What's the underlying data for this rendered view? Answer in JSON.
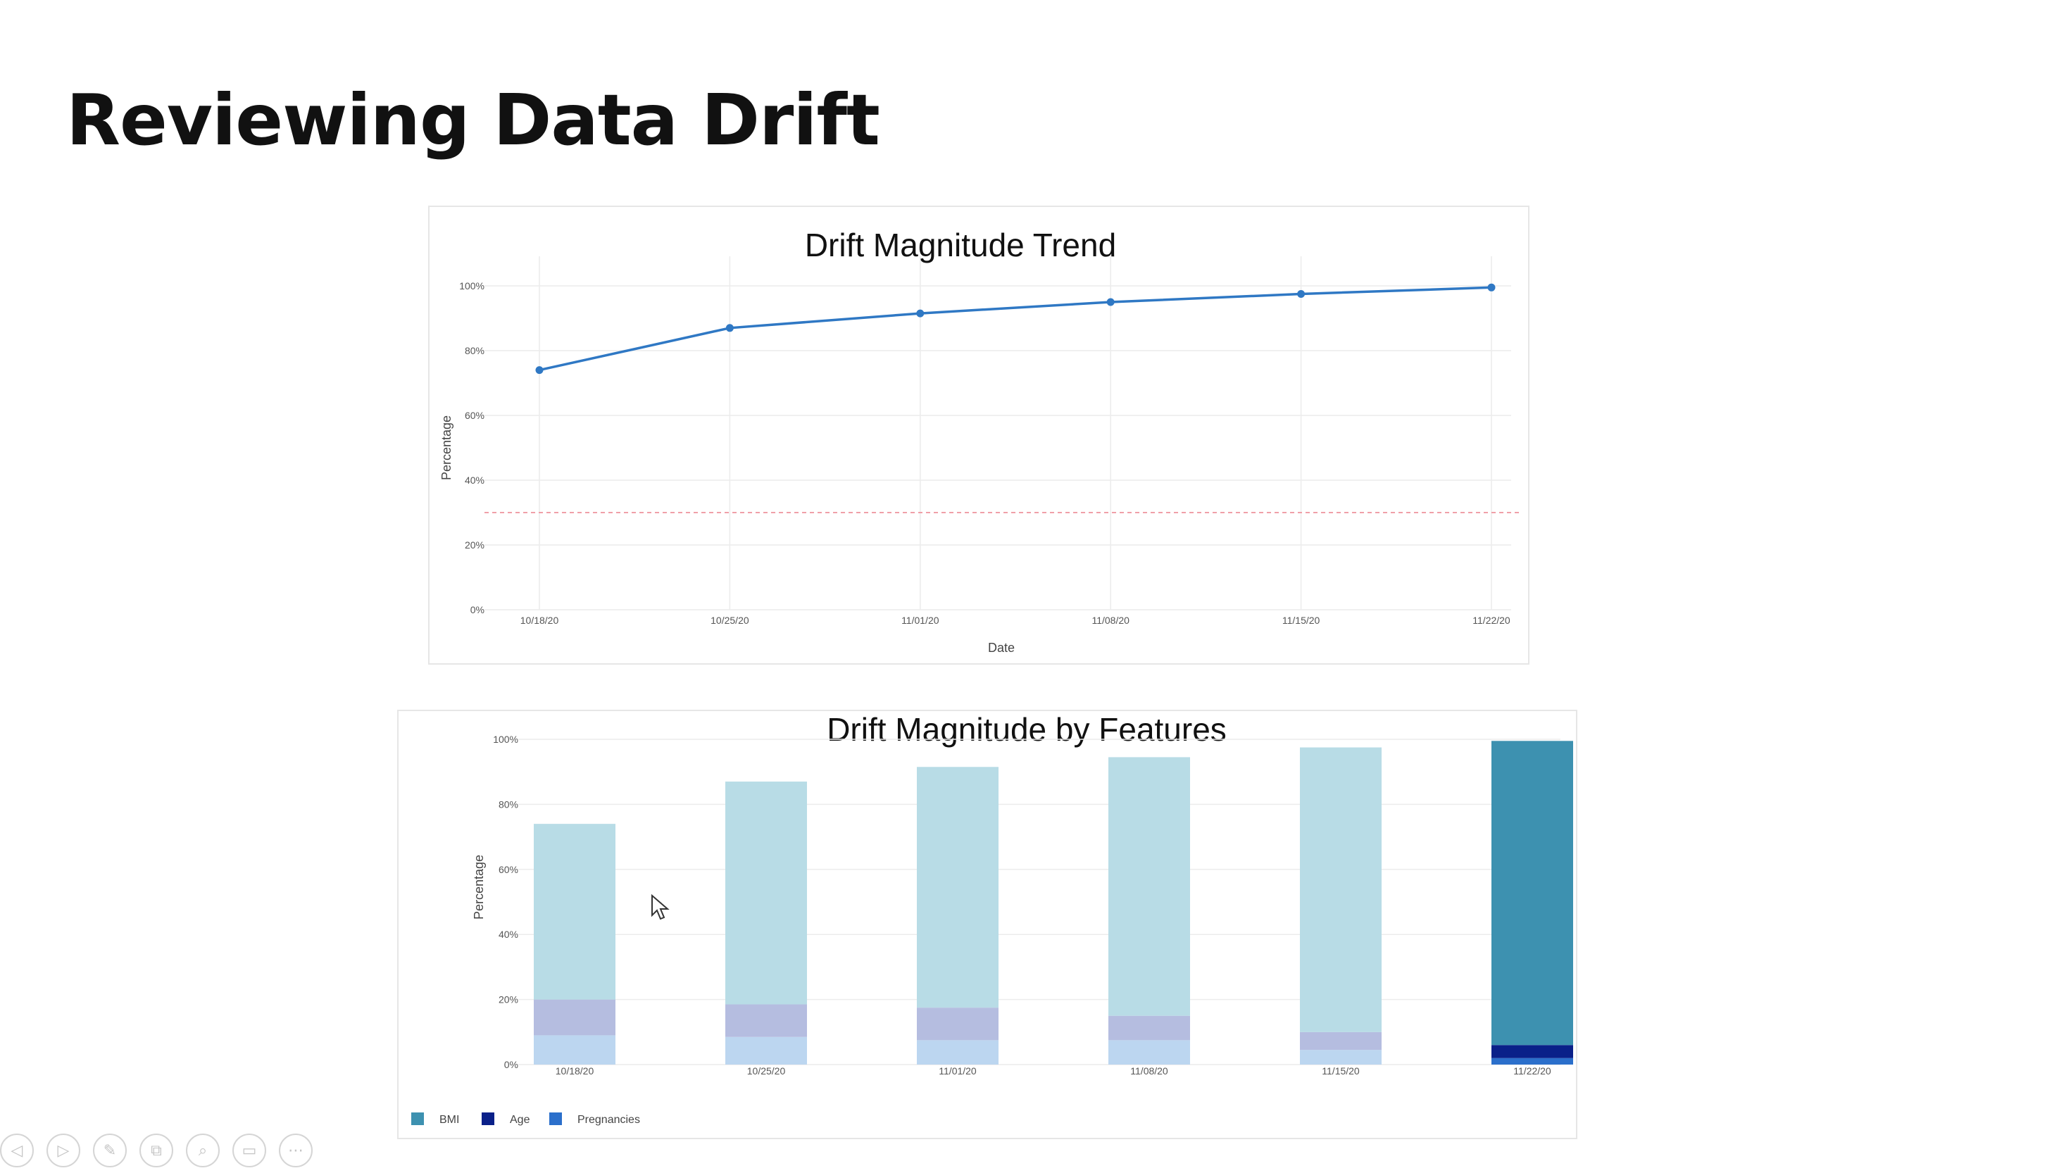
{
  "slide": {
    "title": "Reviewing Data Drift"
  },
  "charts": [
    {
      "type": "line",
      "title": "Drift Magnitude Trend",
      "xlabel": "Date",
      "ylabel": "Percentage",
      "categories": [
        "10/18/20",
        "10/25/20",
        "11/01/20",
        "11/08/20",
        "11/15/20",
        "11/22/20"
      ],
      "series": [
        {
          "values": [
            74,
            87,
            91.5,
            95,
            97.5,
            99.5
          ],
          "color": "#2f78c4"
        }
      ],
      "threshold": {
        "value": 30,
        "color": "#f0a0a8",
        "style": "dashed"
      },
      "yticks": [
        "0%",
        "20%",
        "40%",
        "60%",
        "80%",
        "100%"
      ],
      "ylim": [
        0,
        100
      ],
      "grid": true
    },
    {
      "type": "bar",
      "stacked": true,
      "title": "Drift Magnitude by Features",
      "xlabel": "",
      "ylabel": "Percentage",
      "categories": [
        "10/18/20",
        "10/25/20",
        "11/01/20",
        "11/08/20",
        "11/15/20",
        "11/22/20"
      ],
      "series": [
        {
          "name": "Pregnancies",
          "color": "#2b6fcb",
          "values": [
            9,
            8.5,
            7.5,
            7.5,
            4.5,
            2
          ]
        },
        {
          "name": "Age",
          "color": "#0a2089",
          "values": [
            11,
            10,
            10,
            7.5,
            5.5,
            4
          ]
        },
        {
          "name": "BMI",
          "color": "#3d91b0",
          "values": [
            54,
            68.5,
            74,
            79.5,
            87.5,
            93.5
          ]
        }
      ],
      "highlight_index": 5,
      "faded_colors": {
        "Pregnancies": "#bcd6f0",
        "Age": "#b5bde0",
        "BMI": "#b8dce6"
      },
      "legend": [
        "BMI",
        "Age",
        "Pregnancies"
      ],
      "legend_position": "bottom-left",
      "yticks": [
        "0%",
        "20%",
        "40%",
        "60%",
        "80%",
        "100%"
      ],
      "ylim": [
        0,
        100
      ],
      "grid": true
    }
  ],
  "toolbar": {
    "buttons": [
      {
        "name": "previous-slide-icon",
        "glyph": "◁"
      },
      {
        "name": "next-slide-icon",
        "glyph": "▷"
      },
      {
        "name": "pen-icon",
        "glyph": "✎"
      },
      {
        "name": "see-all-slides-icon",
        "glyph": "⧉"
      },
      {
        "name": "zoom-icon",
        "glyph": "⌕"
      },
      {
        "name": "subtitles-icon",
        "glyph": "▭"
      },
      {
        "name": "more-options-icon",
        "glyph": "⋯"
      }
    ]
  }
}
